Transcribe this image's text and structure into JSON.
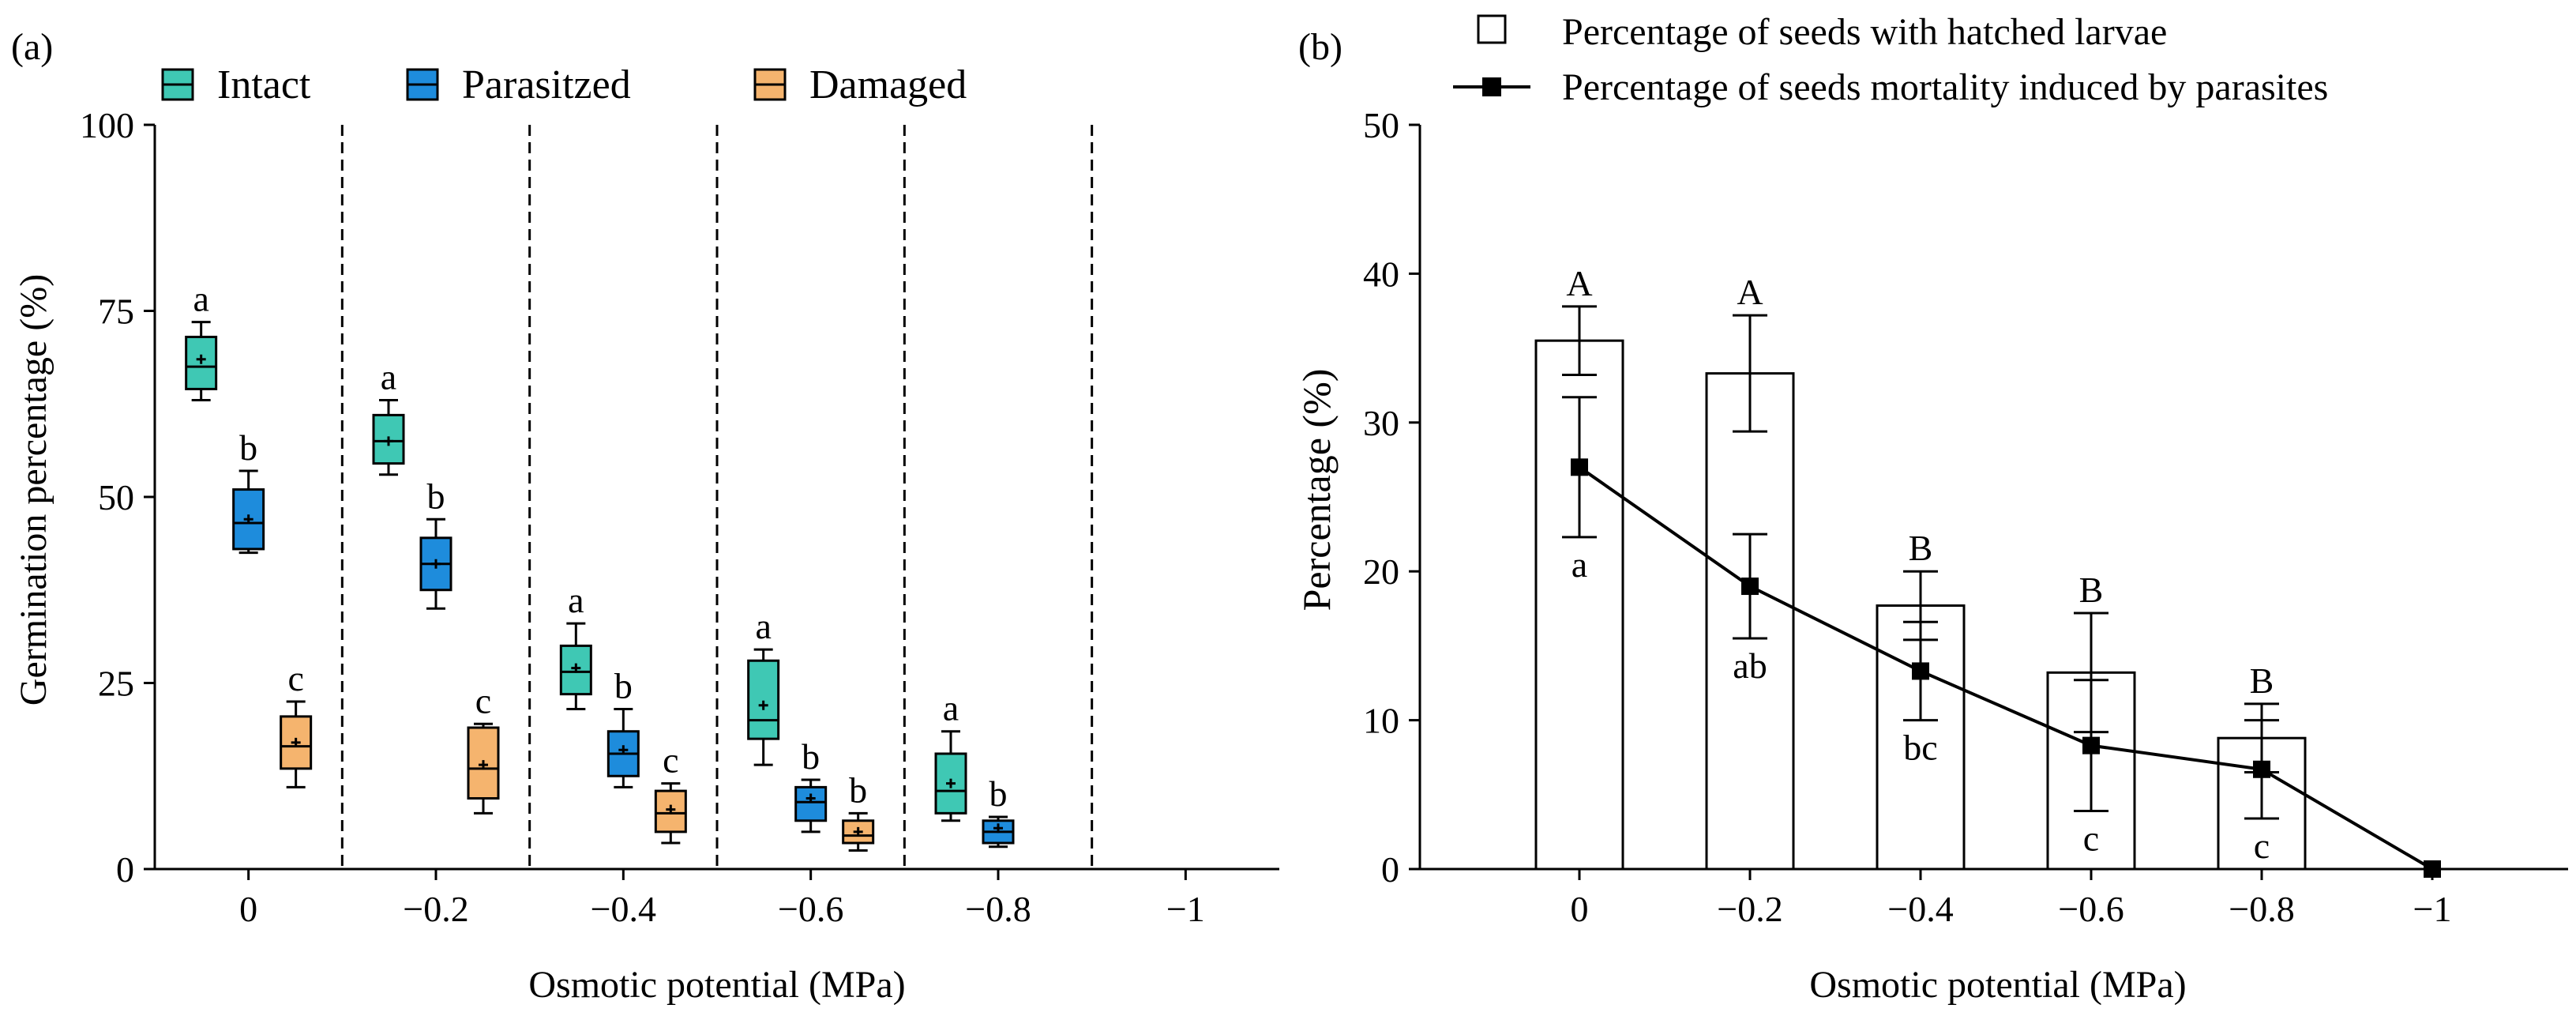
{
  "chart_data": [
    {
      "panel_label": "(a)",
      "type": "box",
      "xlabel": "Osmotic potential (MPa)",
      "ylabel": "Germination percentage (%)",
      "ylim": [
        0,
        100
      ],
      "yticks": [
        0,
        25,
        50,
        75,
        100
      ],
      "categories": [
        "0",
        "−0.2",
        "−0.4",
        "−0.6",
        "−0.8",
        "−1"
      ],
      "legend": [
        {
          "name": "Intact",
          "color": "#3FC8B4"
        },
        {
          "name": "Parasitzed",
          "color": "#1E8CDC"
        },
        {
          "name": "Damaged",
          "color": "#F5B46E"
        }
      ],
      "groups": [
        {
          "category": "0",
          "boxes": [
            {
              "series": "Intact",
              "min": 63,
              "q1": 64.5,
              "median": 67.5,
              "q3": 71.5,
              "max": 73.5,
              "mean": 68.5,
              "letter": "a"
            },
            {
              "series": "Parasitzed",
              "min": 42.5,
              "q1": 43,
              "median": 46.5,
              "q3": 51,
              "max": 53.5,
              "mean": 47,
              "letter": "b"
            },
            {
              "series": "Damaged",
              "min": 11,
              "q1": 13.5,
              "median": 16.5,
              "q3": 20.5,
              "max": 22.5,
              "mean": 17,
              "letter": "c"
            }
          ]
        },
        {
          "category": "−0.2",
          "boxes": [
            {
              "series": "Intact",
              "min": 53,
              "q1": 54.5,
              "median": 57.5,
              "q3": 61,
              "max": 63,
              "mean": 57.5,
              "letter": "a"
            },
            {
              "series": "Parasitzed",
              "min": 35,
              "q1": 37.5,
              "median": 41,
              "q3": 44.5,
              "max": 47,
              "mean": 41,
              "letter": "b"
            },
            {
              "series": "Damaged",
              "min": 7.5,
              "q1": 9.5,
              "median": 13.5,
              "q3": 19,
              "max": 19.5,
              "mean": 14,
              "letter": "c"
            }
          ]
        },
        {
          "category": "−0.4",
          "boxes": [
            {
              "series": "Intact",
              "min": 21.5,
              "q1": 23.5,
              "median": 26.5,
              "q3": 30,
              "max": 33,
              "mean": 27,
              "letter": "a"
            },
            {
              "series": "Parasitzed",
              "min": 11,
              "q1": 12.5,
              "median": 15.5,
              "q3": 18.5,
              "max": 21.5,
              "mean": 16,
              "letter": "b"
            },
            {
              "series": "Damaged",
              "min": 3.5,
              "q1": 5,
              "median": 7.5,
              "q3": 10.5,
              "max": 11.5,
              "mean": 8,
              "letter": "c"
            }
          ]
        },
        {
          "category": "−0.6",
          "boxes": [
            {
              "series": "Intact",
              "min": 14,
              "q1": 17.5,
              "median": 20,
              "q3": 28,
              "max": 29.5,
              "mean": 22,
              "letter": "a"
            },
            {
              "series": "Parasitzed",
              "min": 5,
              "q1": 6.5,
              "median": 9,
              "q3": 11,
              "max": 12,
              "mean": 9.5,
              "letter": "b"
            },
            {
              "series": "Damaged",
              "min": 2.5,
              "q1": 3.5,
              "median": 4.5,
              "q3": 6.5,
              "max": 7.5,
              "mean": 5,
              "letter": "b"
            }
          ]
        },
        {
          "category": "−0.8",
          "boxes": [
            {
              "series": "Intact",
              "min": 6.5,
              "q1": 7.5,
              "median": 10.5,
              "q3": 15.5,
              "max": 18.5,
              "mean": 11.5,
              "letter": "a"
            },
            {
              "series": "Parasitzed",
              "min": 3,
              "q1": 3.5,
              "median": 5,
              "q3": 6.5,
              "max": 7,
              "mean": 5.5,
              "letter": "b"
            }
          ]
        },
        {
          "category": "−1",
          "boxes": []
        }
      ]
    },
    {
      "panel_label": "(b)",
      "type": "bar+line",
      "xlabel": "Osmotic potential (MPa)",
      "ylabel": "Percentage (%)",
      "ylim": [
        0,
        50
      ],
      "yticks": [
        0,
        10,
        20,
        30,
        40,
        50
      ],
      "categories": [
        "0",
        "−0.2",
        "−0.4",
        "−0.6",
        "−0.8",
        "−1"
      ],
      "legend": [
        {
          "name": "Percentage of seeds with hatched larvae",
          "kind": "bar"
        },
        {
          "name": "Percentage of seeds  mortality induced by parasites",
          "kind": "line"
        }
      ],
      "bars": {
        "name": "Percentage of seeds with hatched larvae",
        "values": [
          35.5,
          33.3,
          17.7,
          13.2,
          8.8,
          0
        ],
        "errors": [
          2.3,
          3.9,
          2.3,
          4.0,
          2.3,
          0
        ],
        "letters": [
          "A",
          "A",
          "B",
          "B",
          "B",
          ""
        ]
      },
      "line": {
        "name": "Percentage of seeds  mortality induced by parasites",
        "values": [
          27,
          19,
          13.3,
          8.3,
          6.7,
          0
        ],
        "errors": [
          4.7,
          3.5,
          3.3,
          4.4,
          3.3,
          0
        ],
        "letters": [
          "a",
          "ab",
          "bc",
          "c",
          "c",
          ""
        ]
      }
    }
  ]
}
